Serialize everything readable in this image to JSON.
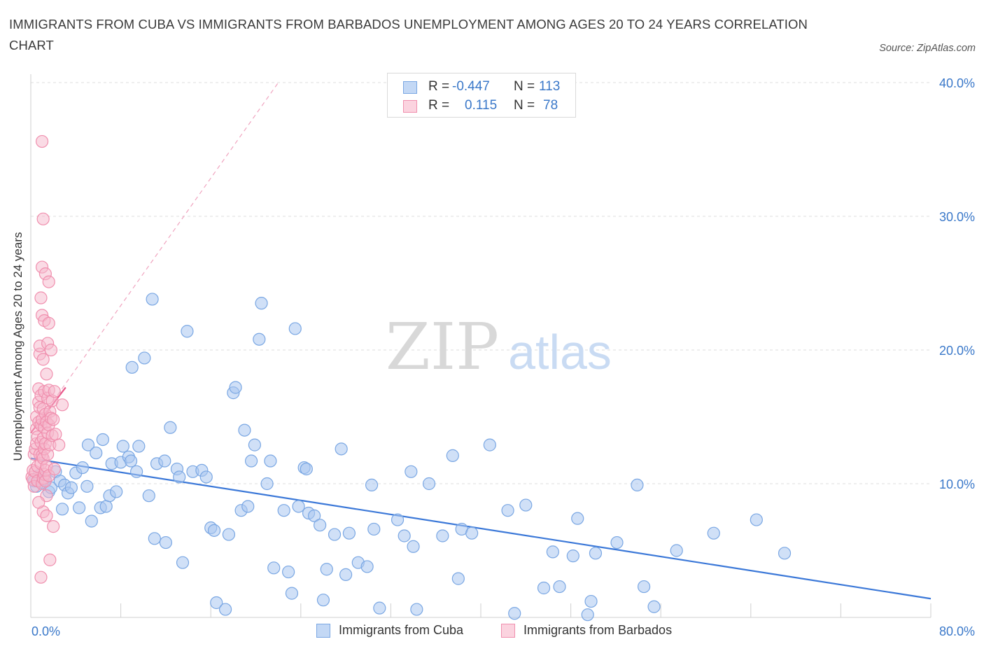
{
  "title": "IMMIGRANTS FROM CUBA VS IMMIGRANTS FROM BARBADOS UNEMPLOYMENT AMONG AGES 20 TO 24 YEARS CORRELATION CHART",
  "source": "Source: ZipAtlas.com",
  "watermark": {
    "zip": "ZIP",
    "atlas": "atlas"
  },
  "legend_stats": [
    {
      "r_label": "R =",
      "r_value": "-0.447",
      "n_label": "N =",
      "n_value": "113",
      "color": "#a9c7f0"
    },
    {
      "r_label": "R =",
      "r_value": "0.115",
      "n_label": "N =",
      "n_value": "78",
      "color": "#f5b8cb"
    }
  ],
  "bottom_legend": [
    {
      "label": "Immigrants from Cuba",
      "color": "#a9c7f0"
    },
    {
      "label": "Immigrants from Barbados",
      "color": "#f5b8cb"
    }
  ],
  "chart_data": {
    "type": "scatter",
    "ylabel": "Unemployment Among Ages 20 to 24 years",
    "xlim": [
      0,
      80
    ],
    "ylim": [
      0,
      40
    ],
    "y_ticks": [
      "10.0%",
      "20.0%",
      "30.0%",
      "40.0%"
    ],
    "y_tick_values": [
      10,
      20,
      30,
      40
    ],
    "x_tick_labels": [
      "0.0%",
      "80.0%"
    ],
    "grid": true,
    "legend_position": "top-center",
    "series": [
      {
        "name": "Immigrants from Cuba",
        "color": "#7aa7e3",
        "trend": {
          "x": [
            0,
            80
          ],
          "y": [
            11.9,
            1.4
          ],
          "color": "#3b78d8"
        },
        "points": [
          [
            0.3,
            10.2
          ],
          [
            0.5,
            9.8
          ],
          [
            0.7,
            10.6
          ],
          [
            1.0,
            10.1
          ],
          [
            1.3,
            10.3
          ],
          [
            1.6,
            9.4
          ],
          [
            1.8,
            9.7
          ],
          [
            2.2,
            10.9
          ],
          [
            2.6,
            10.2
          ],
          [
            2.8,
            8.1
          ],
          [
            3.0,
            9.9
          ],
          [
            3.3,
            9.3
          ],
          [
            3.6,
            9.7
          ],
          [
            4.0,
            10.8
          ],
          [
            4.3,
            8.2
          ],
          [
            4.6,
            11.2
          ],
          [
            5.0,
            9.8
          ],
          [
            5.1,
            12.9
          ],
          [
            5.4,
            7.2
          ],
          [
            5.8,
            12.3
          ],
          [
            6.2,
            8.2
          ],
          [
            6.4,
            13.3
          ],
          [
            6.7,
            8.3
          ],
          [
            7.0,
            9.1
          ],
          [
            7.2,
            11.5
          ],
          [
            7.6,
            9.4
          ],
          [
            8.0,
            11.6
          ],
          [
            8.2,
            12.8
          ],
          [
            8.7,
            12.0
          ],
          [
            8.9,
            11.7
          ],
          [
            9.0,
            18.7
          ],
          [
            9.4,
            10.9
          ],
          [
            9.6,
            12.8
          ],
          [
            10.1,
            19.4
          ],
          [
            10.5,
            9.1
          ],
          [
            10.8,
            23.8
          ],
          [
            11.0,
            5.9
          ],
          [
            11.2,
            11.5
          ],
          [
            11.9,
            11.7
          ],
          [
            12.0,
            5.6
          ],
          [
            12.4,
            14.2
          ],
          [
            13.0,
            11.1
          ],
          [
            13.2,
            10.5
          ],
          [
            13.5,
            4.1
          ],
          [
            13.9,
            21.4
          ],
          [
            14.4,
            10.9
          ],
          [
            15.2,
            11.0
          ],
          [
            15.6,
            10.5
          ],
          [
            16.0,
            6.7
          ],
          [
            16.3,
            6.5
          ],
          [
            16.5,
            1.1
          ],
          [
            17.3,
            0.6
          ],
          [
            17.6,
            6.2
          ],
          [
            18.0,
            16.8
          ],
          [
            18.2,
            17.2
          ],
          [
            18.7,
            8.0
          ],
          [
            19.0,
            14.0
          ],
          [
            19.3,
            8.3
          ],
          [
            19.6,
            11.7
          ],
          [
            19.9,
            12.9
          ],
          [
            20.3,
            20.8
          ],
          [
            20.5,
            23.5
          ],
          [
            21.0,
            10.0
          ],
          [
            21.3,
            11.7
          ],
          [
            21.6,
            3.7
          ],
          [
            22.5,
            8.0
          ],
          [
            22.9,
            3.4
          ],
          [
            23.2,
            1.8
          ],
          [
            23.5,
            21.6
          ],
          [
            23.8,
            8.3
          ],
          [
            24.3,
            11.2
          ],
          [
            24.5,
            11.1
          ],
          [
            24.7,
            7.8
          ],
          [
            25.2,
            7.6
          ],
          [
            25.7,
            6.9
          ],
          [
            26.3,
            3.6
          ],
          [
            27.0,
            6.2
          ],
          [
            27.6,
            12.6
          ],
          [
            28.0,
            3.2
          ],
          [
            28.3,
            6.3
          ],
          [
            29.1,
            4.1
          ],
          [
            29.9,
            3.8
          ],
          [
            30.3,
            9.9
          ],
          [
            30.5,
            6.6
          ],
          [
            31.0,
            0.7
          ],
          [
            32.6,
            7.3
          ],
          [
            33.2,
            6.1
          ],
          [
            33.8,
            10.9
          ],
          [
            34.0,
            5.3
          ],
          [
            34.3,
            0.6
          ],
          [
            35.4,
            10.0
          ],
          [
            36.6,
            6.1
          ],
          [
            37.5,
            12.1
          ],
          [
            38.0,
            2.9
          ],
          [
            38.3,
            6.6
          ],
          [
            39.2,
            6.3
          ],
          [
            40.8,
            12.9
          ],
          [
            42.4,
            8.0
          ],
          [
            44.0,
            8.4
          ],
          [
            45.6,
            2.2
          ],
          [
            46.4,
            4.9
          ],
          [
            47.0,
            2.3
          ],
          [
            48.2,
            4.6
          ],
          [
            48.6,
            7.4
          ],
          [
            49.8,
            1.2
          ],
          [
            50.2,
            4.8
          ],
          [
            52.1,
            5.6
          ],
          [
            53.9,
            9.9
          ],
          [
            54.5,
            2.3
          ],
          [
            55.4,
            0.8
          ],
          [
            57.4,
            5.0
          ],
          [
            60.7,
            6.3
          ],
          [
            64.5,
            7.3
          ],
          [
            67.0,
            4.8
          ],
          [
            49.5,
            0.2
          ],
          [
            43.0,
            0.3
          ],
          [
            26.0,
            1.3
          ]
        ]
      },
      {
        "name": "Immigrants from Barbados",
        "color": "#f08fae",
        "trend": {
          "x": [
            0,
            3.1
          ],
          "y": [
            13.8,
            17.2
          ],
          "color": "#e8578a"
        },
        "trend_extended": {
          "x": [
            0,
            22
          ],
          "y": [
            13.8,
            40.0
          ],
          "color": "#f0a4bf"
        },
        "points": [
          [
            0.1,
            10.5
          ],
          [
            0.2,
            11.0
          ],
          [
            0.2,
            10.3
          ],
          [
            0.3,
            9.8
          ],
          [
            0.3,
            12.2
          ],
          [
            0.4,
            10.9
          ],
          [
            0.4,
            12.6
          ],
          [
            0.5,
            13.0
          ],
          [
            0.5,
            14.1
          ],
          [
            0.5,
            15.0
          ],
          [
            0.6,
            10.2
          ],
          [
            0.6,
            11.3
          ],
          [
            0.6,
            13.5
          ],
          [
            0.7,
            14.6
          ],
          [
            0.7,
            16.1
          ],
          [
            0.7,
            17.1
          ],
          [
            0.8,
            12.2
          ],
          [
            0.8,
            15.7
          ],
          [
            0.8,
            19.7
          ],
          [
            0.8,
            20.3
          ],
          [
            0.9,
            11.5
          ],
          [
            0.9,
            13.1
          ],
          [
            0.9,
            14.4
          ],
          [
            0.9,
            16.6
          ],
          [
            0.9,
            23.9
          ],
          [
            1.0,
            10.0
          ],
          [
            1.0,
            12.1
          ],
          [
            1.0,
            14.8
          ],
          [
            1.0,
            22.6
          ],
          [
            1.0,
            26.2
          ],
          [
            1.1,
            10.4
          ],
          [
            1.1,
            11.9
          ],
          [
            1.1,
            13.4
          ],
          [
            1.1,
            15.6
          ],
          [
            1.1,
            19.3
          ],
          [
            1.1,
            7.9
          ],
          [
            1.2,
            10.7
          ],
          [
            1.2,
            12.6
          ],
          [
            1.2,
            14.2
          ],
          [
            1.2,
            16.9
          ],
          [
            1.2,
            22.2
          ],
          [
            1.3,
            10.2
          ],
          [
            1.3,
            11.0
          ],
          [
            1.3,
            13.0
          ],
          [
            1.3,
            15.2
          ],
          [
            1.3,
            25.7
          ],
          [
            1.4,
            7.6
          ],
          [
            1.4,
            11.3
          ],
          [
            1.4,
            14.6
          ],
          [
            1.4,
            18.2
          ],
          [
            1.5,
            12.2
          ],
          [
            1.5,
            13.8
          ],
          [
            1.5,
            16.4
          ],
          [
            1.5,
            20.5
          ],
          [
            1.6,
            10.6
          ],
          [
            1.6,
            14.4
          ],
          [
            1.6,
            17.0
          ],
          [
            1.6,
            22.0
          ],
          [
            1.6,
            25.1
          ],
          [
            1.7,
            12.9
          ],
          [
            1.7,
            15.4
          ],
          [
            1.7,
            4.3
          ],
          [
            1.8,
            14.9
          ],
          [
            1.8,
            20.0
          ],
          [
            1.9,
            13.6
          ],
          [
            1.9,
            16.2
          ],
          [
            2.0,
            6.8
          ],
          [
            2.0,
            14.8
          ],
          [
            2.1,
            11.1
          ],
          [
            2.1,
            16.9
          ],
          [
            2.2,
            13.7
          ],
          [
            1.0,
            35.6
          ],
          [
            1.1,
            29.8
          ],
          [
            0.9,
            3.0
          ],
          [
            1.4,
            9.1
          ],
          [
            2.5,
            12.9
          ],
          [
            2.8,
            15.9
          ],
          [
            0.7,
            8.6
          ]
        ]
      }
    ]
  }
}
